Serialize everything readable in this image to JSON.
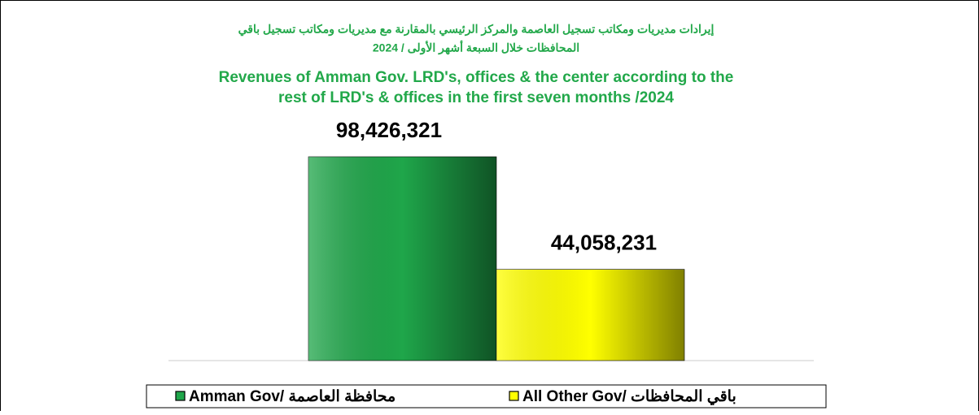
{
  "chart_data": {
    "type": "bar",
    "title": [
      "إيرادات مديريات ومكاتب تسجيل العاصمة والمركز الرئيسي بالمقارنة مع مديريات ومكاتب تسجيل باقي",
      "المحافظات خلال السبعة أشهر الأولى / 2024",
      "Revenues of Amman Gov. LRD's, offices & the center according to the",
      "rest of LRD's & offices in the first seven months /2024"
    ],
    "series": [
      {
        "name": "Amman Gov/ محافظة العاصمة",
        "color": "#1fa64a",
        "values": [
          98426321
        ],
        "value_labels": [
          "98,426,321"
        ]
      },
      {
        "name": "All Other Gov/ باقي المحافظات",
        "color": "#ffff00",
        "values": [
          44058231
        ],
        "value_labels": [
          "44,058,231"
        ]
      }
    ],
    "legend": "bottom"
  }
}
